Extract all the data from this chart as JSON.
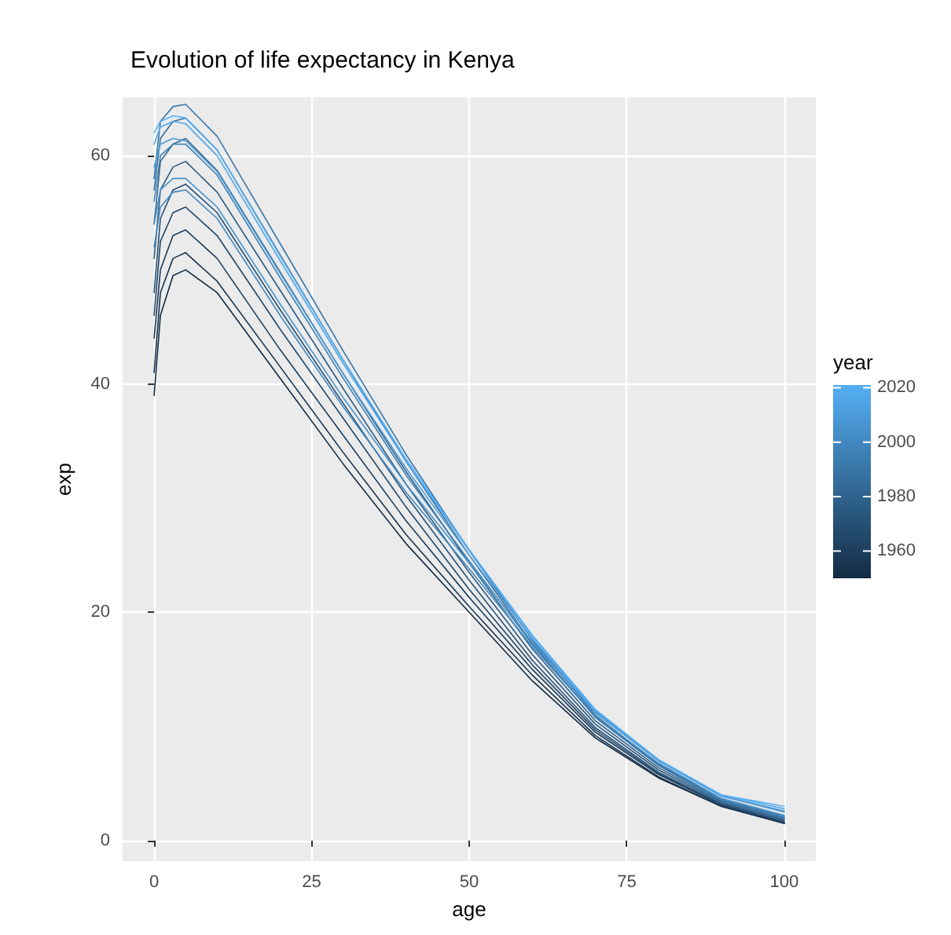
{
  "chart_data": {
    "type": "line",
    "title": "Evolution of life expectancy in Kenya",
    "xlabel": "age",
    "ylabel": "exp",
    "clabel": "year",
    "clim": [
      1950,
      2021
    ],
    "cticks": [
      1960,
      1980,
      2000,
      2020
    ],
    "xlim": [
      -5,
      105
    ],
    "xticks": [
      0,
      25,
      50,
      75,
      100
    ],
    "ylim": [
      -1.8,
      65.1
    ],
    "yticks": [
      0,
      20,
      40,
      60
    ],
    "grid": true,
    "marker": "none",
    "line_style": "solid",
    "x": [
      0,
      1,
      3,
      5,
      10,
      20,
      30,
      40,
      50,
      60,
      70,
      80,
      90,
      100
    ],
    "series": [
      {
        "color": "#132b43",
        "values": [
          39,
          46,
          49.5,
          50,
          48,
          40.5,
          33,
          26,
          20,
          14,
          9,
          5.5,
          3,
          1.5
        ]
      },
      {
        "color": "#183450",
        "values": [
          41,
          48,
          51,
          51.5,
          49,
          41.5,
          34,
          26.8,
          20.5,
          14.5,
          9.2,
          5.6,
          3,
          1.5
        ]
      },
      {
        "color": "#1c3e5c",
        "values": [
          44,
          50,
          53,
          53.5,
          51,
          43,
          35.5,
          28,
          21.3,
          15,
          9.5,
          5.8,
          3.1,
          1.6
        ]
      },
      {
        "color": "#214769",
        "values": [
          46,
          52.5,
          55,
          55.5,
          53,
          44.8,
          37,
          29.2,
          22,
          15.4,
          9.7,
          5.9,
          3.2,
          1.6
        ]
      },
      {
        "color": "#265176",
        "values": [
          48,
          54.5,
          57,
          57.5,
          55,
          46.5,
          38.3,
          30.2,
          22.8,
          15.8,
          9.9,
          6,
          3.2,
          1.7
        ]
      },
      {
        "color": "#2b5a82",
        "values": [
          51,
          57,
          59,
          59.5,
          56.8,
          48.2,
          39.6,
          31.2,
          23.5,
          16.3,
          10.2,
          6.2,
          3.3,
          1.8
        ]
      },
      {
        "color": "#2f648f",
        "values": [
          54,
          59.5,
          61,
          61.5,
          58.7,
          49.8,
          40.9,
          32.3,
          24.3,
          16.8,
          10.5,
          6.4,
          3.4,
          1.9
        ]
      },
      {
        "color": "#346d9c",
        "values": [
          57,
          61.5,
          63,
          63.3,
          60.5,
          51.3,
          42.1,
          33.2,
          25,
          17.3,
          10.8,
          6.6,
          3.5,
          2
        ]
      },
      {
        "color": "#3976a8",
        "values": [
          58,
          63,
          64.3,
          64.5,
          61.7,
          52.3,
          42.9,
          33.8,
          25.4,
          17.6,
          11,
          6.7,
          3.6,
          2
        ]
      },
      {
        "color": "#3d80b5",
        "values": [
          56,
          60,
          61,
          61,
          58.3,
          49.3,
          40.5,
          32,
          24.5,
          17.2,
          10.9,
          6.7,
          3.6,
          2.1
        ]
      },
      {
        "color": "#4289c2",
        "values": [
          52,
          55.5,
          56.8,
          57,
          54.5,
          46,
          38,
          30.5,
          23.8,
          17,
          10.9,
          6.8,
          3.7,
          2.2
        ]
      },
      {
        "color": "#4793ce",
        "values": [
          54,
          57,
          58,
          58,
          55.5,
          47,
          38.8,
          31.2,
          24.3,
          17.4,
          11.2,
          7,
          3.9,
          2.5
        ]
      },
      {
        "color": "#4c9cdb",
        "values": [
          59,
          61,
          61.5,
          61.3,
          58.6,
          49.7,
          40.9,
          32.6,
          25,
          17.7,
          11.3,
          7,
          3.9,
          2.6
        ]
      },
      {
        "color": "#50a6e8",
        "values": [
          61,
          62.5,
          63,
          62.8,
          60,
          50.8,
          41.8,
          33.2,
          25.4,
          17.9,
          11.4,
          7.1,
          4,
          2.8
        ]
      },
      {
        "color": "#55aff4",
        "values": [
          62,
          63,
          63.5,
          63.3,
          60.5,
          51.2,
          42.1,
          33.4,
          25.5,
          18,
          11.5,
          7.1,
          4,
          3
        ]
      }
    ]
  }
}
